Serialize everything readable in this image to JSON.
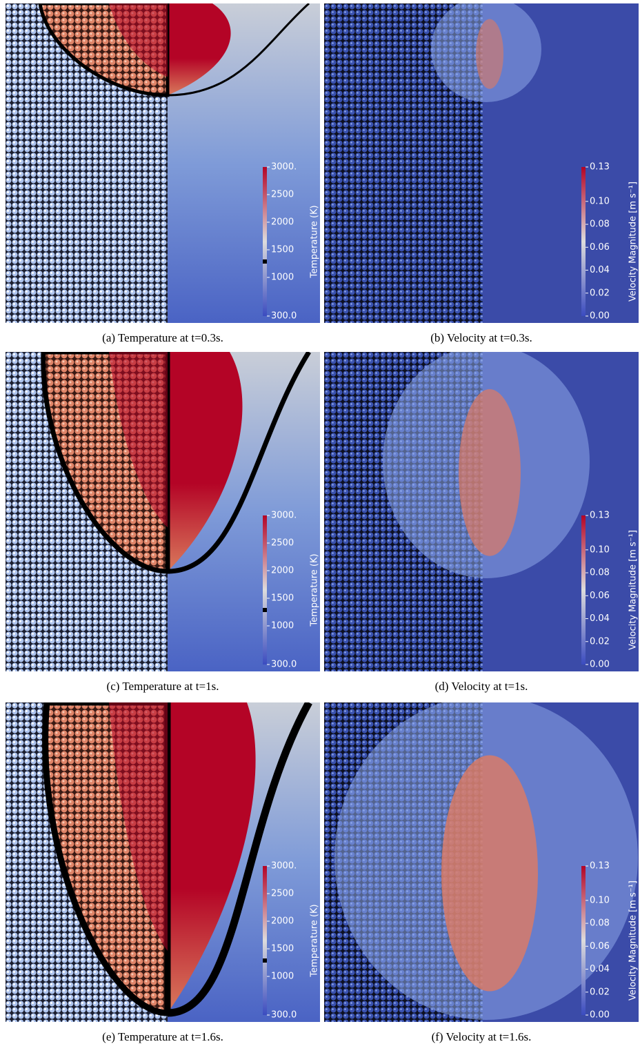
{
  "figure": {
    "panels": [
      {
        "caption": "(a) Temperature at t=0.3s."
      },
      {
        "caption": "(b) Velocity at t=0.3s."
      },
      {
        "caption": "(c) Temperature at t=1s."
      },
      {
        "caption": "(d) Velocity at t=1s."
      },
      {
        "caption": "(e) Temperature at t=1.6s."
      },
      {
        "caption": "(f) Velocity at t=1.6s."
      }
    ],
    "colorbars": {
      "temperature": {
        "title": "Temperature (K)",
        "range": [
          300,
          3000
        ],
        "ticks": [
          {
            "value": 3000,
            "label": "3000."
          },
          2500,
          2000,
          1500,
          1000,
          {
            "value": 300,
            "label": "300.0"
          }
        ]
      },
      "velocity": {
        "title": "Velocity Magnitude [m s⁻¹]",
        "range": [
          0,
          0.13
        ],
        "ticks": [
          0.13,
          {
            "value": 0.1,
            "label": "0.10"
          },
          0.08,
          0.06,
          0.04,
          0.02,
          {
            "value": 0,
            "label": "0.00"
          }
        ]
      }
    }
  }
}
